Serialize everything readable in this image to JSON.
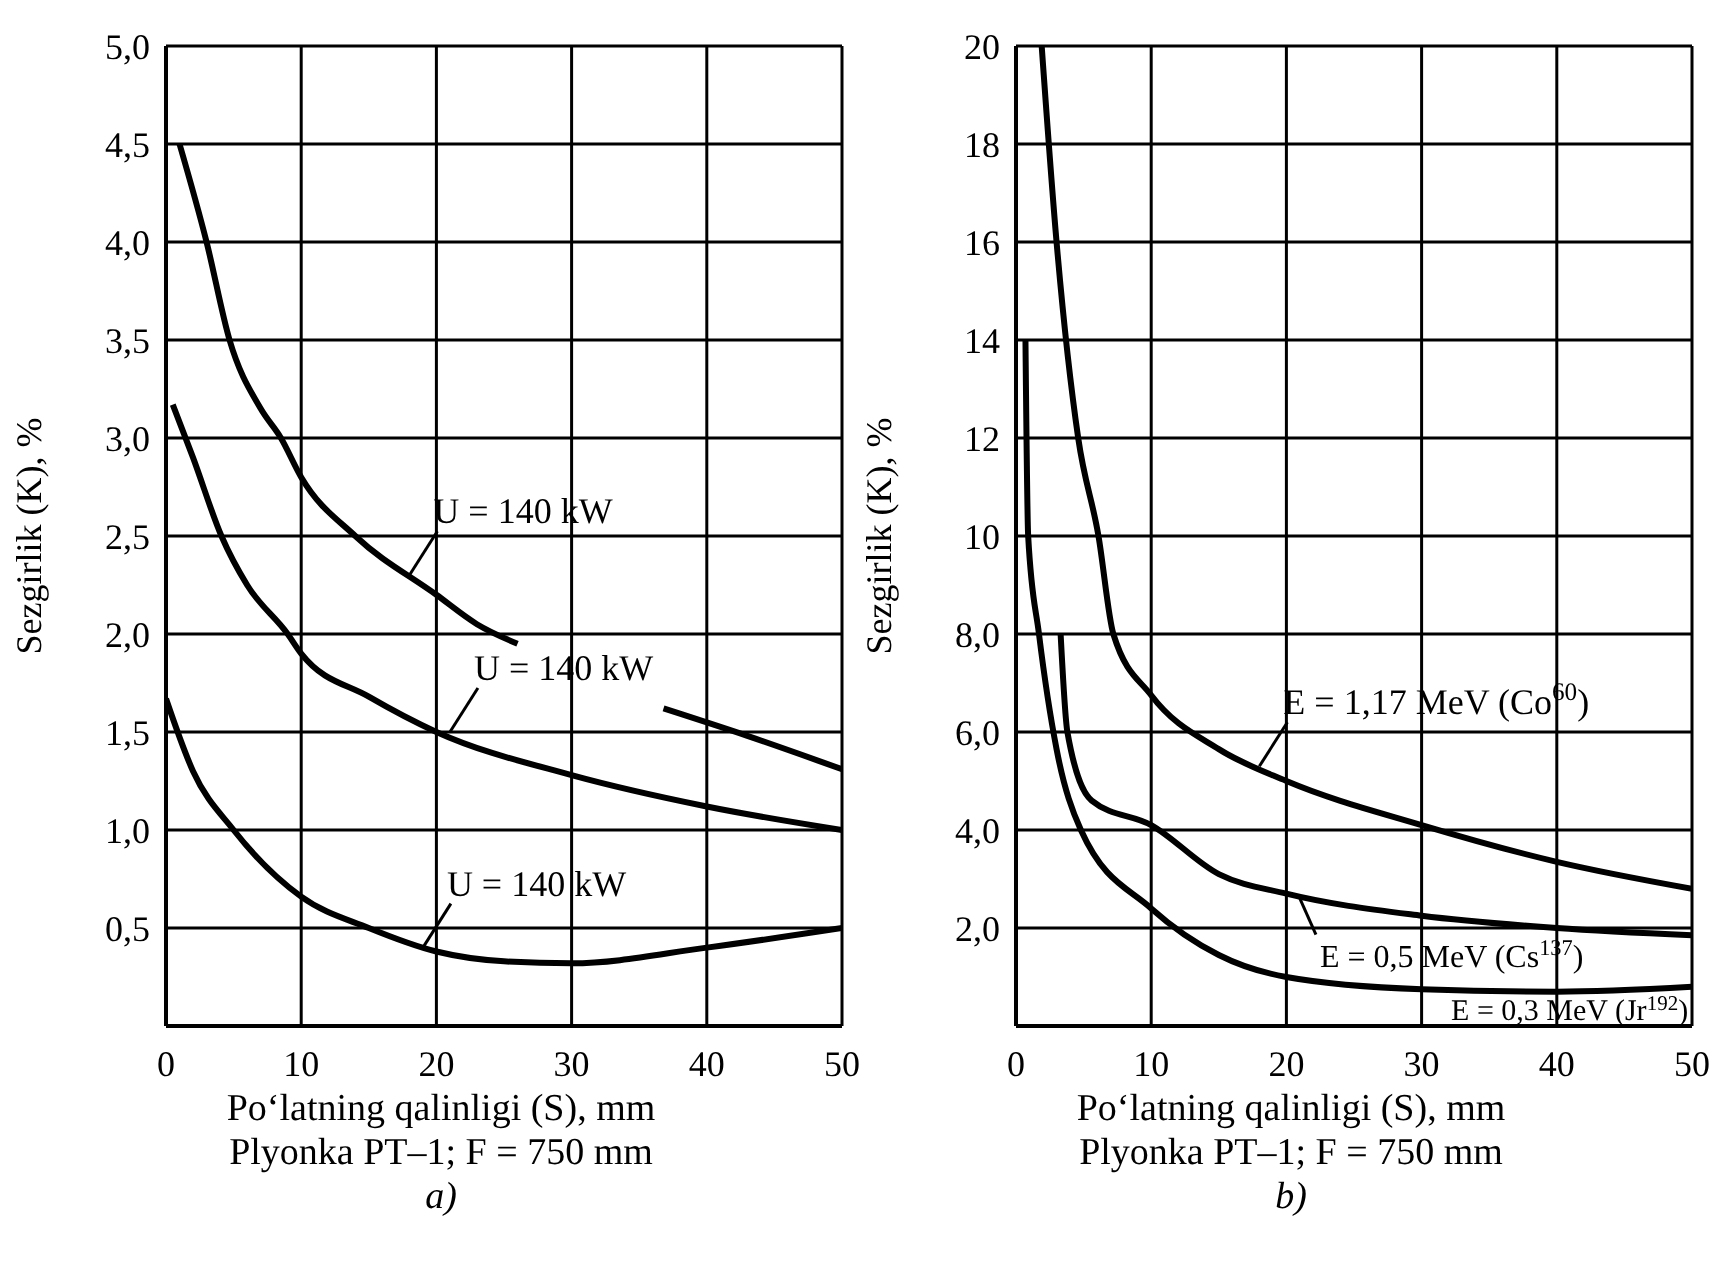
{
  "chart_data": [
    {
      "type": "line",
      "title": "a)",
      "subtitle": "Plyonka PT–1; F = 750 mm",
      "xlabel": "Po‘latning qalinligi (S), mm",
      "ylabel": "Sezgirlik (K), %",
      "xlim": [
        0,
        50
      ],
      "xticks": [
        0,
        10,
        20,
        30,
        40,
        50
      ],
      "ylim": [
        0,
        5
      ],
      "yticks": [
        {
          "value": 0.5,
          "label": "0,5"
        },
        {
          "value": 1,
          "label": "1,0"
        },
        {
          "value": 1.5,
          "label": "1,5"
        },
        {
          "value": 2,
          "label": "2,0"
        },
        {
          "value": 2.5,
          "label": "2,5"
        },
        {
          "value": 3,
          "label": "3,0"
        },
        {
          "value": 3.5,
          "label": "3,5"
        },
        {
          "value": 4,
          "label": "4,0"
        },
        {
          "value": 4.5,
          "label": "4,5"
        },
        {
          "value": 5,
          "label": "5,0"
        }
      ],
      "grid": true,
      "marker": "none",
      "line_style": "solid",
      "series": [
        {
          "color": "#000000",
          "x": [
            1,
            3,
            4.7,
            7,
            8.5,
            10,
            14,
            20,
            23,
            26
          ],
          "values": [
            4.5,
            4.0,
            3.5,
            3.15,
            3.0,
            2.8,
            2.5,
            2.2,
            2.05,
            1.95
          ]
        },
        {
          "color": "#000000",
          "x": [
            0.5,
            2,
            4.1,
            6,
            9,
            10,
            15,
            20,
            30,
            40,
            50
          ],
          "values": [
            3.17,
            2.9,
            2.5,
            2.25,
            2.0,
            1.9,
            1.68,
            1.5,
            1.28,
            1.12,
            1.0
          ]
        },
        {
          "color": "#000000",
          "x": [
            36.8,
            43,
            50
          ],
          "values": [
            1.62,
            1.48,
            1.31
          ]
        },
        {
          "color": "#000000",
          "x": [
            0,
            2,
            5,
            10,
            15,
            20,
            25,
            30,
            40,
            50
          ],
          "values": [
            1.67,
            1.3,
            1.0,
            0.66,
            0.5,
            0.38,
            0.33,
            0.32,
            0.4,
            0.5
          ]
        }
      ],
      "annotations": [
        {
          "text": "U = 140 kW",
          "x": 18,
          "y": 2.3
        },
        {
          "text": "U = 140 kW",
          "x": 21,
          "y": 1.5
        },
        {
          "text": "U = 140 kW",
          "x": 19,
          "y": 0.4
        }
      ]
    },
    {
      "type": "line",
      "title": "b)",
      "subtitle": "Plyonka PT–1; F = 750 mm",
      "xlabel": "Po‘latning qalinligi (S), mm",
      "ylabel": "Sezgirlik (K), %",
      "xlim": [
        0,
        50
      ],
      "xticks": [
        0,
        10,
        20,
        30,
        40,
        50
      ],
      "ylim": [
        0,
        20
      ],
      "yticks": [
        {
          "value": 2,
          "label": "2,0"
        },
        {
          "value": 4,
          "label": "4,0"
        },
        {
          "value": 6,
          "label": "6,0"
        },
        {
          "value": 8,
          "label": "8,0"
        },
        10,
        12,
        14,
        16,
        18,
        20
      ],
      "grid": true,
      "marker": "none",
      "line_style": "solid",
      "series": [
        {
          "color": "#000000",
          "x": [
            1.9,
            3,
            4.6,
            6.1,
            7.2,
            10,
            15,
            20,
            30,
            40,
            50
          ],
          "values": [
            20,
            16,
            12,
            10,
            8,
            6.75,
            5.65,
            5.0,
            4.1,
            3.35,
            2.8
          ]
        },
        {
          "color": "#000000",
          "x": [
            3.3,
            3.8,
            5.6,
            10,
            15,
            20,
            30,
            40,
            50
          ],
          "values": [
            8,
            6,
            4.6,
            4.1,
            3.1,
            2.7,
            2.25,
            2.0,
            1.85
          ]
        },
        {
          "color": "#000000",
          "x": [
            0.7,
            0.9,
            1.7,
            3.0,
            4.8,
            10,
            15,
            20,
            30,
            40,
            50
          ],
          "values": [
            14,
            10,
            8,
            5.65,
            4,
            2.4,
            1.45,
            1.0,
            0.75,
            0.7,
            0.8
          ]
        }
      ],
      "annotations": [
        {
          "text": "E = 1,17 MeV (Co$^{60}$)",
          "x": 18,
          "y": 5.3
        },
        {
          "text": "E = 0,5 MeV (Cs$^{137}$)",
          "x": 21,
          "y": 2.6
        },
        {
          "text": "E = 0,3 MeV (Jr$^{192}$)",
          "x": 31,
          "y": 0.74
        }
      ]
    }
  ]
}
